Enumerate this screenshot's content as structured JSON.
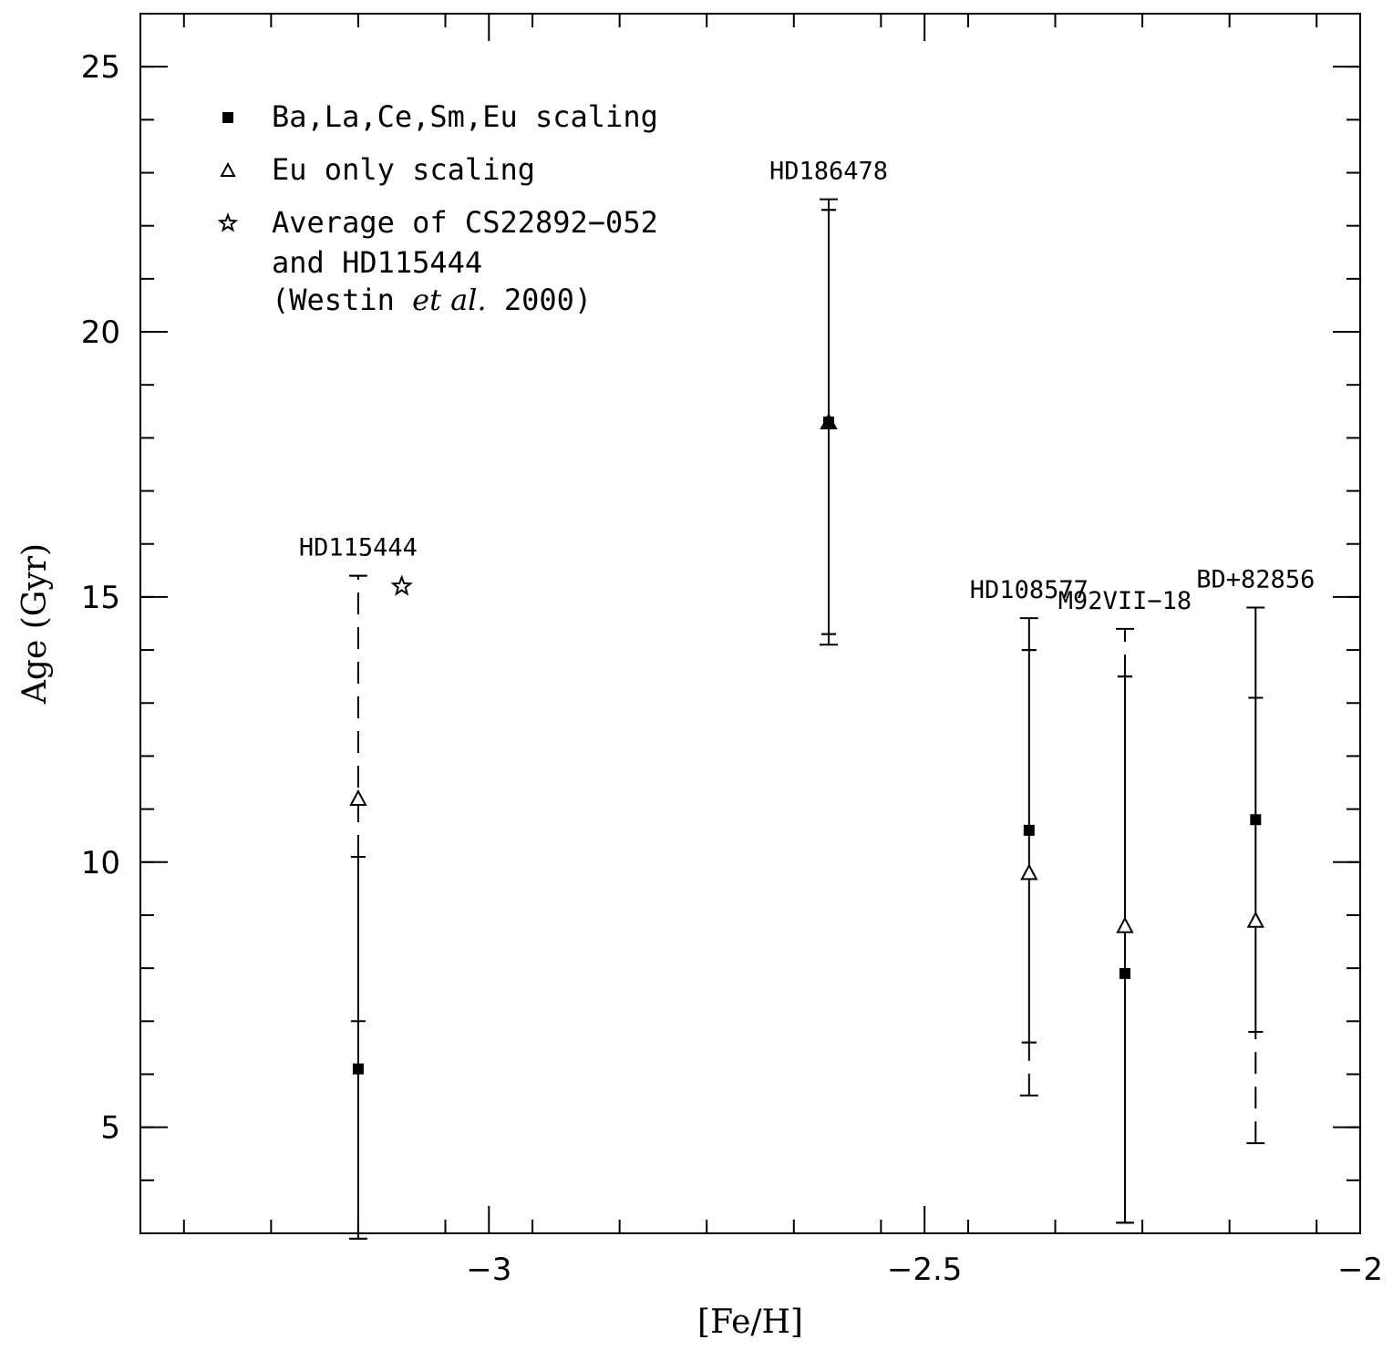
{
  "chart_data": {
    "type": "scatter",
    "xlabel": "[Fe/H]",
    "ylabel": "Age (Gyr)",
    "xlim": [
      -3.4,
      -2.0
    ],
    "ylim": [
      3.0,
      26.0
    ],
    "x_ticks": [
      -3,
      -2.5,
      -2
    ],
    "x_tick_labels": [
      "−3",
      "−2.5",
      "−2"
    ],
    "y_ticks": [
      5,
      10,
      15,
      20,
      25
    ],
    "y_tick_labels": [
      "5",
      "10",
      "15",
      "20",
      "25"
    ],
    "grid": false,
    "legend_position": "top-left",
    "legend": {
      "entries": [
        {
          "marker": "filled-square",
          "label": "Ba,La,Ce,Sm,Eu scaling"
        },
        {
          "marker": "open-triangle",
          "label": "Eu only scaling"
        },
        {
          "marker": "open-star",
          "label": "Average of CS22892−052"
        }
      ],
      "note_line1": "and HD115444",
      "note_prefix": "(Westin ",
      "note_italic": "et al.",
      "note_suffix": " 2000)"
    },
    "stars": [
      {
        "label": "HD115444",
        "feh": -3.15,
        "ba_age": 6.1,
        "ba_err": [
          2.9,
          10.1
        ],
        "ba_inner": [
          2.9,
          7.0
        ],
        "eu_age": 11.2,
        "eu_err": [
          10.1,
          15.4
        ],
        "eu_inner": [
          10.1,
          15.4
        ],
        "eu_dashed": true
      },
      {
        "label": "HD186478",
        "feh": -2.61,
        "ba_age": 18.3,
        "ba_err": [
          14.1,
          22.5
        ],
        "ba_inner": [
          14.3,
          22.3
        ],
        "eu_age": 18.3,
        "eu_err": [
          14.1,
          22.5
        ],
        "eu_inner": [
          14.3,
          22.3
        ],
        "eu_dashed": false
      },
      {
        "label": "HD108577",
        "feh": -2.38,
        "ba_age": 10.6,
        "ba_err": [
          6.6,
          14.6
        ],
        "ba_inner": [
          6.6,
          14.0
        ],
        "eu_age": 9.8,
        "eu_err": [
          5.6,
          14.6
        ],
        "eu_inner": [
          6.6,
          14.0
        ],
        "eu_dashed": true
      },
      {
        "label": "M92VII−18",
        "feh": -2.27,
        "ba_age": 7.9,
        "ba_err": [
          3.2,
          13.5
        ],
        "ba_inner": [
          3.2,
          13.5
        ],
        "eu_age": 8.8,
        "eu_err": [
          3.2,
          14.4
        ],
        "eu_inner": [
          3.2,
          13.5
        ],
        "eu_dashed": true
      },
      {
        "label": "BD+82856",
        "feh": -2.12,
        "ba_age": 10.8,
        "ba_err": [
          6.8,
          14.8
        ],
        "ba_inner": [
          6.8,
          13.1
        ],
        "eu_age": 8.9,
        "eu_err": [
          4.7,
          14.8
        ],
        "eu_inner": [
          6.8,
          13.1
        ],
        "eu_dashed": true
      }
    ],
    "average_point": {
      "feh": -3.1,
      "age": 15.2
    }
  }
}
